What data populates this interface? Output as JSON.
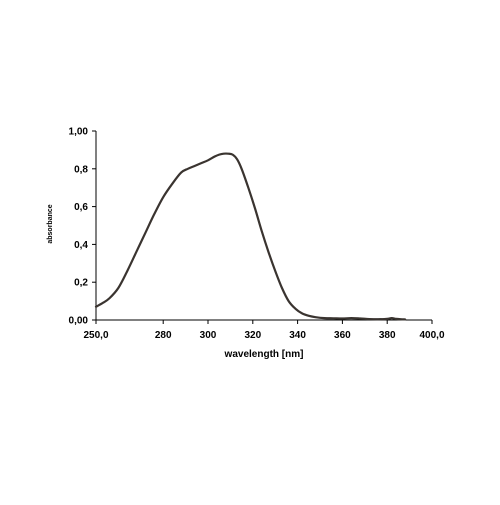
{
  "chart_data": {
    "type": "line",
    "title": "",
    "xlabel": "wavelength [nm]",
    "ylabel": "absorbance",
    "xlim": [
      250,
      400
    ],
    "ylim": [
      0,
      1
    ],
    "x_ticks": [
      {
        "value": 250,
        "label": "250,0"
      },
      {
        "value": 280,
        "label": "280"
      },
      {
        "value": 300,
        "label": "300"
      },
      {
        "value": 320,
        "label": "320"
      },
      {
        "value": 340,
        "label": "340"
      },
      {
        "value": 360,
        "label": "360"
      },
      {
        "value": 380,
        "label": "380"
      },
      {
        "value": 400,
        "label": "400,0"
      }
    ],
    "y_ticks": [
      {
        "value": 0,
        "label": "0,00"
      },
      {
        "value": 0.2,
        "label": "0,2"
      },
      {
        "value": 0.4,
        "label": "0,4"
      },
      {
        "value": 0.6,
        "label": "0,6"
      },
      {
        "value": 0.8,
        "label": "0,8"
      },
      {
        "value": 1.0,
        "label": "1,00"
      }
    ],
    "grid": false,
    "legend": "none",
    "series": [
      {
        "color": "#3a3430",
        "x": [
          250,
          253,
          256,
          260,
          264,
          268,
          272,
          276,
          280,
          284,
          288,
          291,
          294,
          297,
          300,
          303,
          305,
          307,
          309,
          311,
          313,
          315,
          318,
          321,
          324,
          327,
          330,
          333,
          336,
          339,
          342,
          345,
          348,
          352,
          356,
          360,
          364,
          368,
          372,
          376,
          380,
          382,
          384,
          386,
          388
        ],
        "y": [
          0.07,
          0.09,
          0.115,
          0.17,
          0.26,
          0.36,
          0.46,
          0.56,
          0.65,
          0.72,
          0.78,
          0.8,
          0.815,
          0.83,
          0.845,
          0.865,
          0.875,
          0.88,
          0.88,
          0.875,
          0.85,
          0.8,
          0.7,
          0.59,
          0.47,
          0.36,
          0.26,
          0.17,
          0.1,
          0.06,
          0.035,
          0.022,
          0.015,
          0.01,
          0.009,
          0.008,
          0.01,
          0.008,
          0.005,
          0.004,
          0.006,
          0.01,
          0.006,
          0.004,
          0.003
        ]
      }
    ]
  }
}
